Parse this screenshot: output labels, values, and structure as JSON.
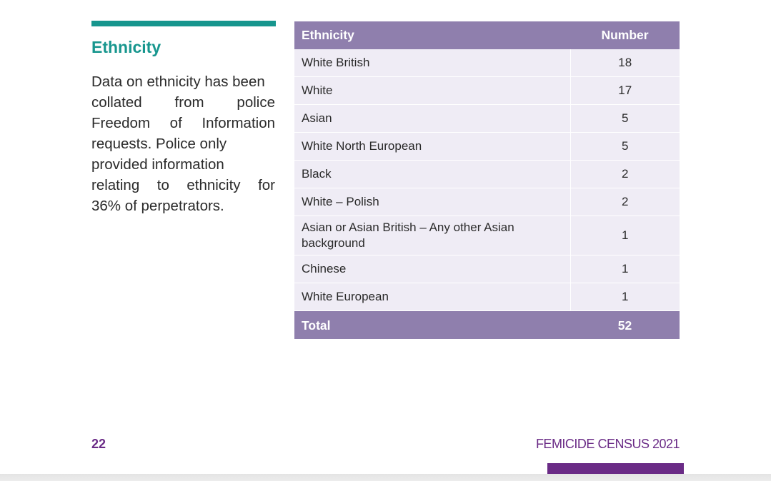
{
  "section": {
    "heading": "Ethnicity",
    "intro_lines": [
      "Data on ethnicity has been",
      "collated from police",
      "Freedom of Information",
      "requests. Police only",
      "provided information",
      "relating to ethnicity for",
      "36% of perpetrators."
    ]
  },
  "table": {
    "headers": [
      "Ethnicity",
      "Number"
    ],
    "rows": [
      [
        "White British",
        "18"
      ],
      [
        "White",
        "17"
      ],
      [
        "Asian",
        "5"
      ],
      [
        "White North European",
        "5"
      ],
      [
        "Black",
        "2"
      ],
      [
        "White – Polish",
        "2"
      ],
      [
        "Asian or Asian British – Any other Asian background",
        "1"
      ],
      [
        "Chinese",
        "1"
      ],
      [
        "White European",
        "1"
      ]
    ],
    "total": [
      "Total",
      "52"
    ]
  },
  "footer": {
    "page_number": "22",
    "title": "FEMICIDE CENSUS 2021"
  },
  "colors": {
    "accent_teal": "#17968e",
    "table_header": "#8f7fad",
    "table_row": "#efecf5",
    "footer_purple": "#6a2b86"
  }
}
